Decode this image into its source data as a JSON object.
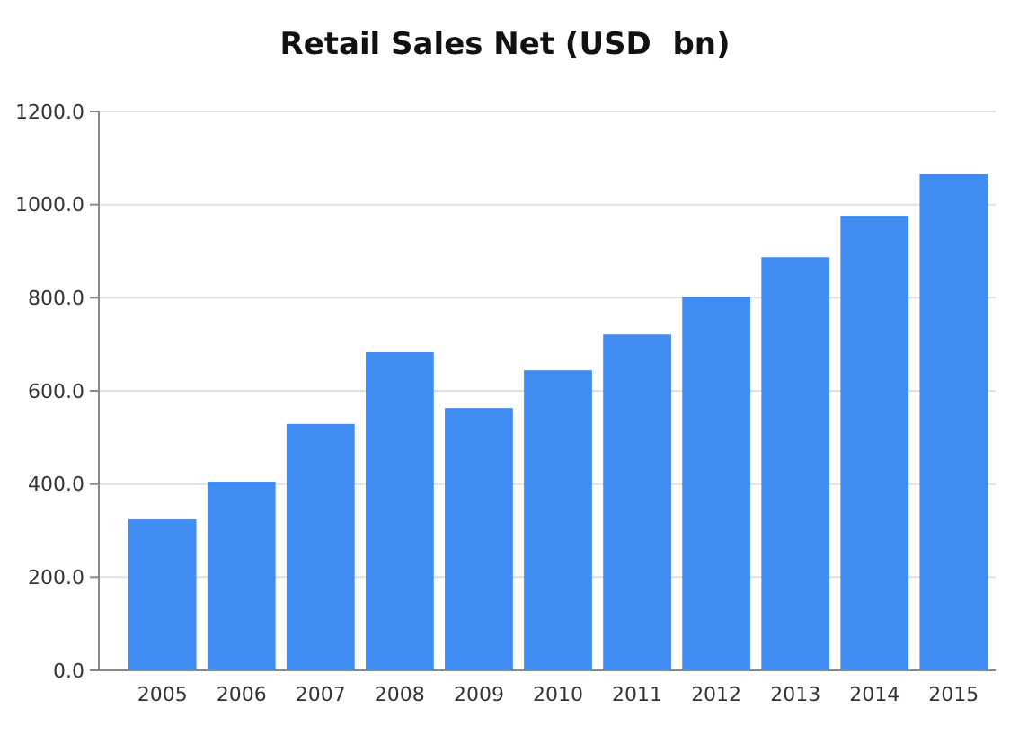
{
  "chart_data": {
    "type": "bar",
    "title": "Retail Sales Net (USD  bn)",
    "categories": [
      "2005",
      "2006",
      "2007",
      "2008",
      "2009",
      "2010",
      "2011",
      "2012",
      "2013",
      "2014",
      "2015"
    ],
    "values": [
      324,
      405,
      529,
      683,
      563,
      644,
      721,
      802,
      887,
      976,
      1065
    ],
    "color": "#408cf0",
    "ylim": [
      0,
      1200
    ],
    "yticks": [
      {
        "value": 0,
        "label": "0.0"
      },
      {
        "value": 200,
        "label": "200.0"
      },
      {
        "value": 400,
        "label": "400.0"
      },
      {
        "value": 600,
        "label": "600.0"
      },
      {
        "value": 800,
        "label": "800.0"
      },
      {
        "value": 1000,
        "label": "1000.0"
      },
      {
        "value": 1200,
        "label": "1200.0"
      }
    ],
    "grid": "y"
  }
}
